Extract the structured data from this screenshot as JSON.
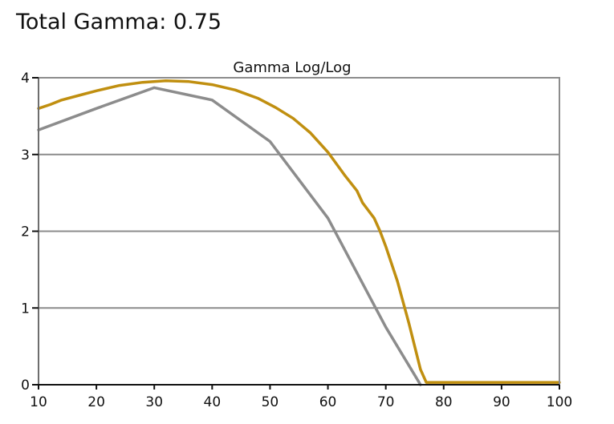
{
  "page": {
    "title": "Total Gamma: 0.75"
  },
  "chart_data": {
    "type": "line",
    "title": "Gamma Log/Log",
    "xlabel": "",
    "ylabel": "",
    "xlim": [
      10,
      100
    ],
    "ylim": [
      0,
      4
    ],
    "xticks": [
      10,
      20,
      30,
      40,
      50,
      60,
      70,
      80,
      90,
      100
    ],
    "yticks": [
      0,
      1,
      2,
      3,
      4
    ],
    "grid": "horizontal",
    "legend": "none",
    "colors": {
      "frame": "#8c8c8c",
      "grid": "#8c8c8c"
    },
    "series": [
      {
        "color": "#c08f10",
        "x": [
          10,
          12,
          14,
          17,
          20,
          24,
          28,
          32,
          36,
          40,
          44,
          48,
          51,
          54,
          57,
          60,
          63,
          65,
          66,
          68,
          69,
          70,
          72,
          74,
          76,
          77,
          80,
          85,
          90,
          95,
          100
        ],
        "y": [
          3.6,
          3.65,
          3.71,
          3.77,
          3.83,
          3.9,
          3.94,
          3.96,
          3.95,
          3.91,
          3.84,
          3.73,
          3.61,
          3.47,
          3.28,
          3.03,
          2.72,
          2.53,
          2.37,
          2.17,
          2.0,
          1.8,
          1.35,
          0.8,
          0.2,
          0.03,
          0.03,
          0.03,
          0.03,
          0.03,
          0.03
        ]
      },
      {
        "color": "#8c8c8c",
        "x": [
          10,
          20,
          30,
          40,
          50,
          60,
          70,
          76
        ],
        "y": [
          3.32,
          3.6,
          3.87,
          3.71,
          3.17,
          2.17,
          0.75,
          0.0
        ]
      }
    ]
  }
}
